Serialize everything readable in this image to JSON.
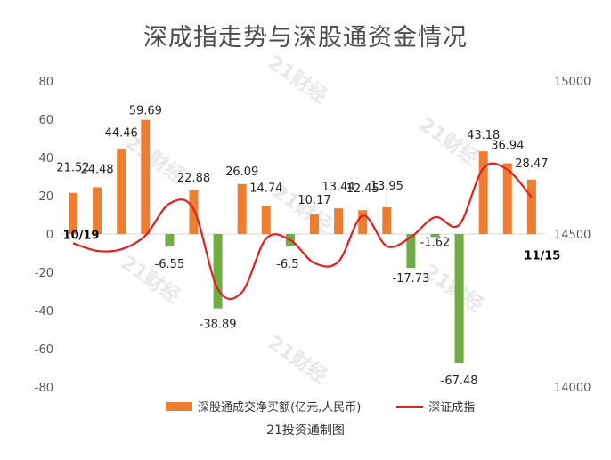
{
  "title": "深成指走势与深股通资金情况",
  "source": "21投资通制图",
  "watermark": "21财经",
  "colors": {
    "positive": "#ed7d31",
    "negative": "#70ad47",
    "line": "#e02020",
    "axis_text": "#595959"
  },
  "legend": {
    "bar_label": "深股通成交净买额(亿元,人民币)",
    "line_label": "深证成指"
  },
  "chart_data": {
    "type": "bar",
    "y_left": {
      "min": -80,
      "max": 80,
      "step": 20,
      "ticks": [
        "80",
        "60",
        "40",
        "20",
        "0",
        "-20",
        "-40",
        "-60",
        "-80"
      ]
    },
    "y_right": {
      "min": 14000,
      "max": 15000,
      "ticks": [
        "15000",
        "14500",
        "14000"
      ]
    },
    "grid": false,
    "legend_position": "bottom",
    "series": [
      {
        "name": "深股通成交净买额(亿元,人民币)",
        "type": "bar",
        "values": [
          21.52,
          24.48,
          44.46,
          59.69,
          -6.55,
          22.88,
          -38.89,
          26.09,
          14.74,
          -6.5,
          10.17,
          13.44,
          12.45,
          13.95,
          -17.73,
          -1.62,
          -67.48,
          43.18,
          36.94,
          28.47
        ],
        "labels": [
          "21.52",
          "24.48",
          "44.46",
          "59.69",
          "-6.55",
          "22.88",
          "-38.89",
          "26.09",
          "14.74",
          "-6.5",
          "10.17",
          "13.44",
          "12.45",
          "13.95",
          "-17.73",
          "-1.62",
          "-67.48",
          "43.18",
          "36.94",
          "28.47"
        ]
      },
      {
        "name": "深证成指",
        "type": "line",
        "values": [
          14470,
          14445,
          14450,
          14495,
          14600,
          14580,
          14320,
          14310,
          14485,
          14480,
          14405,
          14410,
          14560,
          14460,
          14490,
          14555,
          14530,
          14715,
          14710,
          14620
        ]
      }
    ],
    "annotations": {
      "start": "10/19",
      "end": "11/15"
    }
  }
}
